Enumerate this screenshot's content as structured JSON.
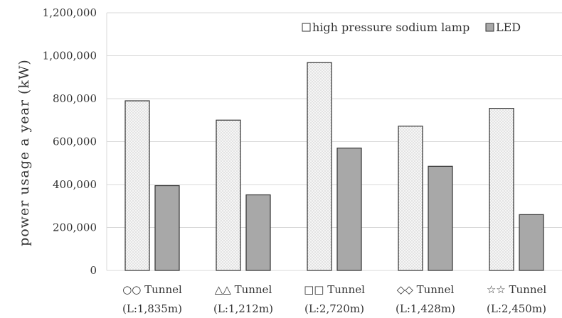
{
  "chart_data": {
    "type": "bar",
    "title": "",
    "xlabel": "",
    "ylabel": "power usage a year (kW)",
    "ylim": [
      0,
      1200000
    ],
    "yticks": [
      "0",
      "200,000",
      "400,000",
      "600,000",
      "800,000",
      "1,000,000",
      "1,200,000"
    ],
    "grid": true,
    "legend_position": "top-right",
    "categories": [
      {
        "line1": "○○ Tunnel",
        "line2": "(L:1,835m)"
      },
      {
        "line1": "△△ Tunnel",
        "line2": "(L:1,212m)"
      },
      {
        "line1": "□□ Tunnel",
        "line2": "(L:2,720m)"
      },
      {
        "line1": "◇◇ Tunnel",
        "line2": "(L:1,428m)"
      },
      {
        "line1": "☆☆ Tunnel",
        "line2": "(L:2,450m)"
      }
    ],
    "series": [
      {
        "name": "high pressure sodium lamp",
        "pattern": "dotted",
        "color": "#f4f4f4",
        "values": [
          790000,
          700000,
          968000,
          672000,
          755000
        ]
      },
      {
        "name": "LED",
        "pattern": "solid",
        "color": "#a8a8a8",
        "values": [
          395000,
          352000,
          570000,
          485000,
          260000
        ]
      }
    ]
  }
}
